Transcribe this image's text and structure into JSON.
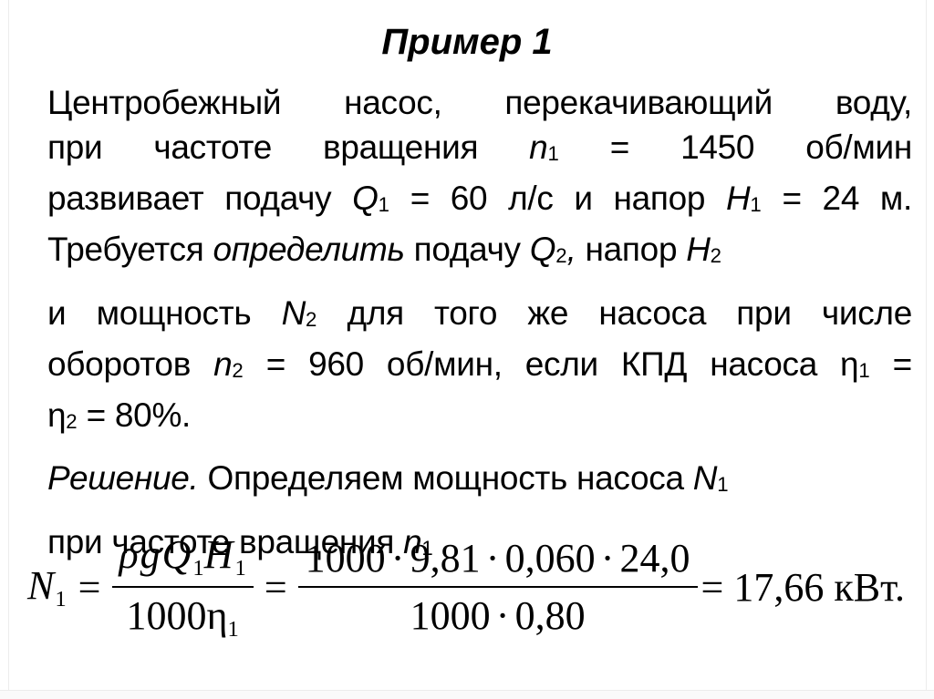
{
  "slide": {
    "title": "Пример 1",
    "paragraphs": [
      {
        "lines": [
          [
            {
              "t": "Центробежный насос, перекачивающий воду,"
            }
          ],
          [
            {
              "t": "при частоте вращения "
            },
            {
              "t": "n",
              "i": true
            },
            {
              "t": "1",
              "sub": true
            },
            {
              "t": " = 1450 об/мин"
            }
          ],
          [
            {
              "t": "развивает подачу "
            },
            {
              "t": "Q",
              "i": true
            },
            {
              "t": "1",
              "sub": true
            },
            {
              "t": " = 60 л/с и напор "
            },
            {
              "t": "H",
              "i": true
            },
            {
              "t": "1",
              "sub": true
            },
            {
              "t": " = 24 м."
            }
          ],
          [
            {
              "t": "Требуется "
            },
            {
              "t": "определить",
              "i": true
            },
            {
              "t": " подачу "
            },
            {
              "t": "Q",
              "i": true
            },
            {
              "t": "2",
              "sub": true
            },
            {
              "t": ",",
              "i": true
            },
            {
              "t": " напор "
            },
            {
              "t": "H",
              "i": true
            },
            {
              "t": "2",
              "sub": true
            }
          ]
        ]
      },
      {
        "lines": [
          [
            {
              "t": "и мощность "
            },
            {
              "t": "N",
              "i": true
            },
            {
              "t": "2",
              "sub": true
            },
            {
              "t": " для того же насоса при числе"
            }
          ],
          [
            {
              "t": "оборотов "
            },
            {
              "t": "n",
              "i": true
            },
            {
              "t": "2",
              "sub": true
            },
            {
              "t": " = 960 об/мин, если КПД насоса η"
            },
            {
              "t": "1",
              "sub": true
            },
            {
              "t": " ="
            }
          ],
          [
            {
              "t": "η"
            },
            {
              "t": "2",
              "sub": true
            },
            {
              "t": " = 80%."
            }
          ]
        ]
      },
      {
        "lines": [
          [
            {
              "t": "Решение.",
              "i": true
            },
            {
              "t": " Определяем мощность насоса "
            },
            {
              "t": "N",
              "i": true
            },
            {
              "t": "1",
              "sub": true
            }
          ]
        ]
      },
      {
        "lines": [
          [
            {
              "t": "при частоте вращения "
            },
            {
              "t": "n",
              "i": true
            },
            {
              "t": "1",
              "sub": true
            }
          ]
        ]
      }
    ],
    "formula": {
      "lhs": [
        {
          "t": "N",
          "i": true
        },
        {
          "t": "1",
          "sub": true
        }
      ],
      "eq1": "=",
      "frac1_num": [
        {
          "t": "ρg",
          "i": true
        },
        {
          "t": "Q",
          "i": true
        },
        {
          "t": "1",
          "sub": true
        },
        {
          "t": "H",
          "i": true
        },
        {
          "t": "1",
          "sub": true
        }
      ],
      "frac1_den": [
        {
          "t": "1000η"
        },
        {
          "t": "1",
          "sub": true
        }
      ],
      "eq2": "=",
      "frac2_num": [
        {
          "t": "1000"
        },
        {
          "t": "·",
          "dot": true
        },
        {
          "t": "9,81"
        },
        {
          "t": "·",
          "dot": true
        },
        {
          "t": "0,060"
        },
        {
          "t": "·",
          "dot": true
        },
        {
          "t": "24,0"
        }
      ],
      "frac2_den": [
        {
          "t": "1000"
        },
        {
          "t": "·",
          "dot": true
        },
        {
          "t": "0,80"
        }
      ],
      "result": [
        {
          "t": "= 17,66 кВт."
        }
      ]
    }
  }
}
